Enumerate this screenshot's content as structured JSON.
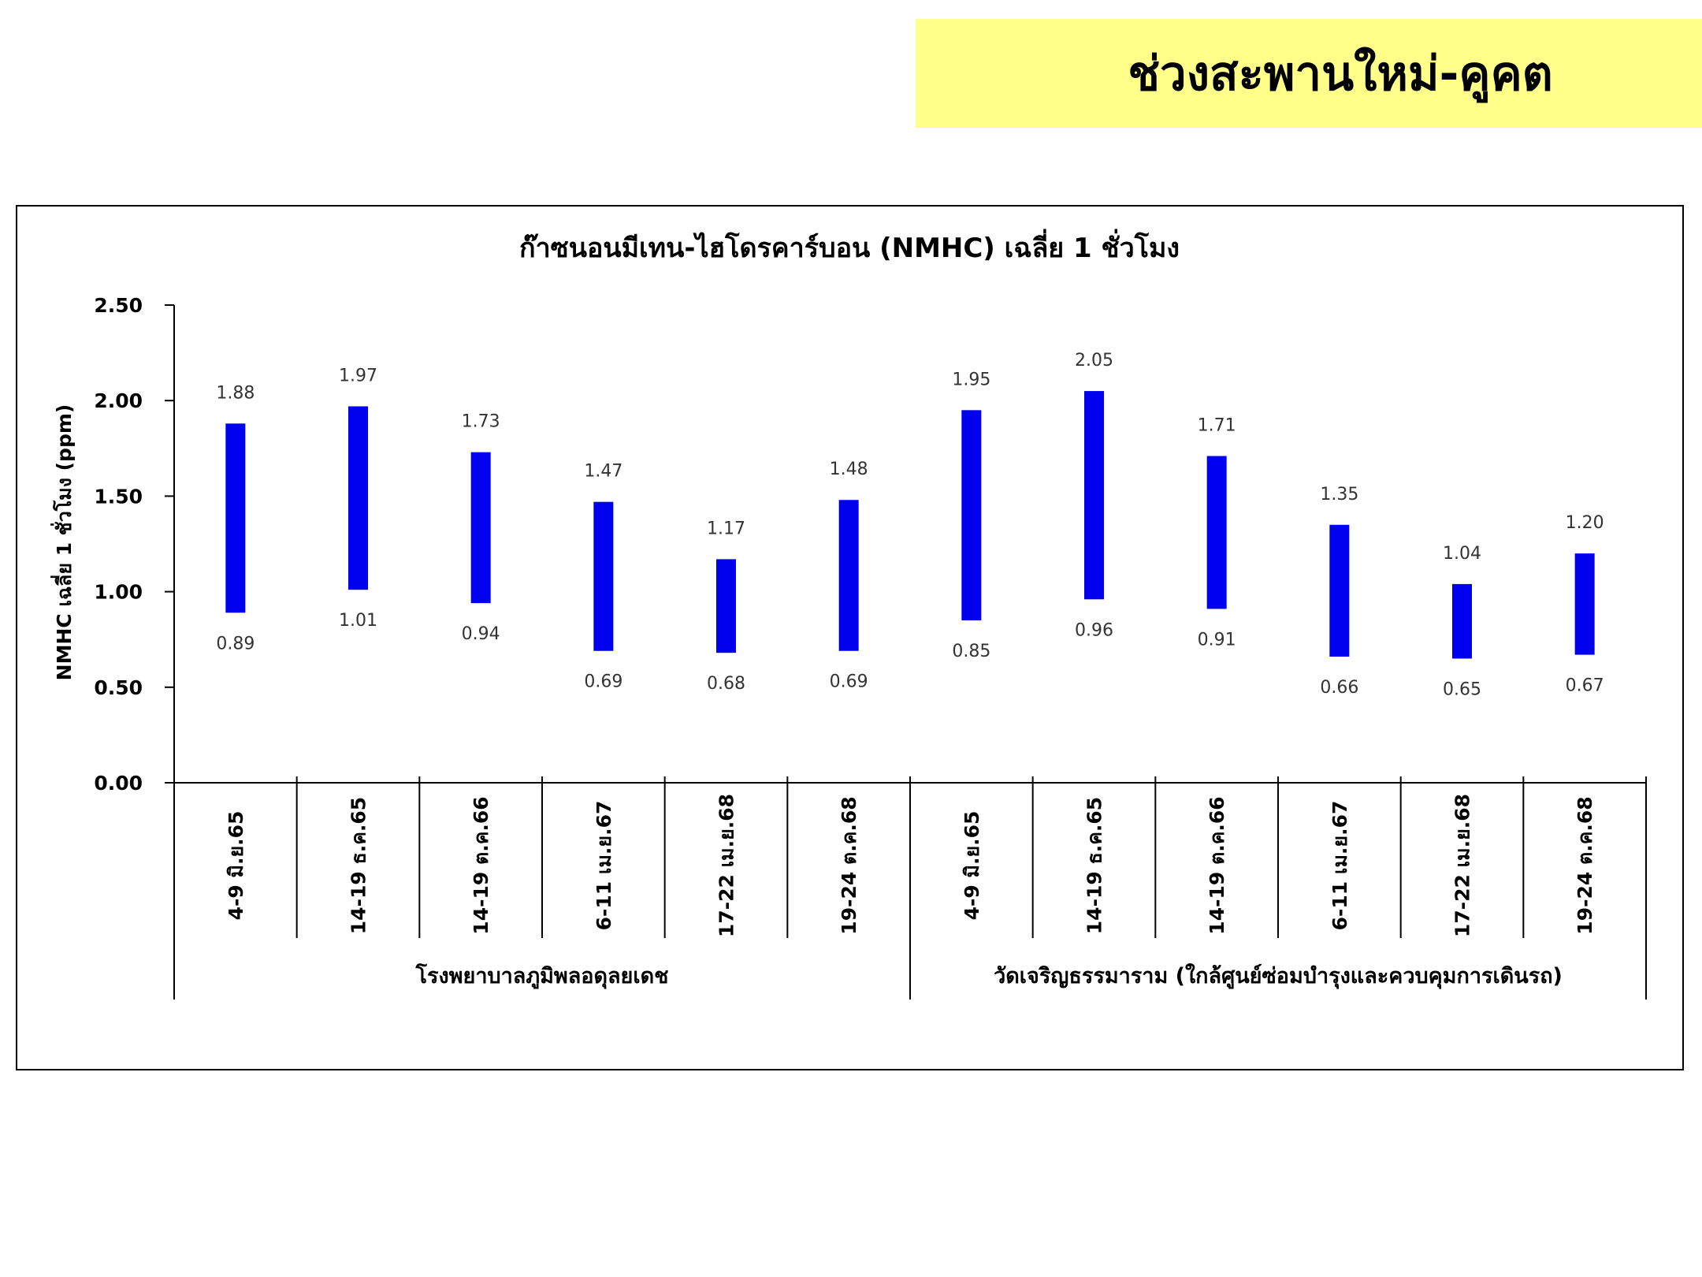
{
  "banner": {
    "title": "ช่วงสะพานใหม่-คูคต",
    "color": "#ffff8a"
  },
  "chart_data": {
    "type": "bar",
    "subtype": "floating-range",
    "title": "ก๊าซนอนมีเทน-ไฮโดรคาร์บอน (NMHC) เฉลี่ย 1 ชั่วโมง",
    "ylabel": "NMHC เฉลี่ย 1 ชั่วโมง (ppm)",
    "xlabel": "",
    "ylim": [
      0,
      2.5
    ],
    "yticks": [
      "0.00",
      "0.50",
      "1.00",
      "1.50",
      "2.00",
      "2.50"
    ],
    "bar_color": "#0000ee",
    "grid": false,
    "legend": "none",
    "categories": [
      "4-9 มิ.ย.65",
      "14-19 ธ.ค.65",
      "14-19 ต.ค.66",
      "6-11 เม.ย.67",
      "17-22 เม.ย.68",
      "19-24 ต.ค.68",
      "4-9 มิ.ย.65",
      "14-19 ธ.ค.65",
      "14-19 ต.ค.66",
      "6-11 เม.ย.67",
      "17-22 เม.ย.68",
      "19-24 ต.ค.68"
    ],
    "groups": [
      {
        "label": "โรงพยาบาลภูมิพลอดุลยเดช",
        "count": 6
      },
      {
        "label": "วัดเจริญธรรมาราม (ใกล้ศูนย์ซ่อมบำรุงและควบคุมการเดินรถ)",
        "count": 6
      }
    ],
    "max": [
      1.88,
      1.97,
      1.73,
      1.47,
      1.17,
      1.48,
      1.95,
      2.05,
      1.71,
      1.35,
      1.04,
      1.2
    ],
    "min": [
      0.89,
      1.01,
      0.94,
      0.69,
      0.68,
      0.69,
      0.85,
      0.96,
      0.91,
      0.66,
      0.65,
      0.67
    ],
    "max_labels": [
      "1.88",
      "1.97",
      "1.73",
      "1.47",
      "1.17",
      "1.48",
      "1.95",
      "2.05",
      "1.71",
      "1.35",
      "1.04",
      "1.20"
    ],
    "min_labels": [
      "0.89",
      "1.01",
      "0.94",
      "0.69",
      "0.68",
      "0.69",
      "0.85",
      "0.96",
      "0.91",
      "0.66",
      "0.65",
      "0.67"
    ]
  }
}
